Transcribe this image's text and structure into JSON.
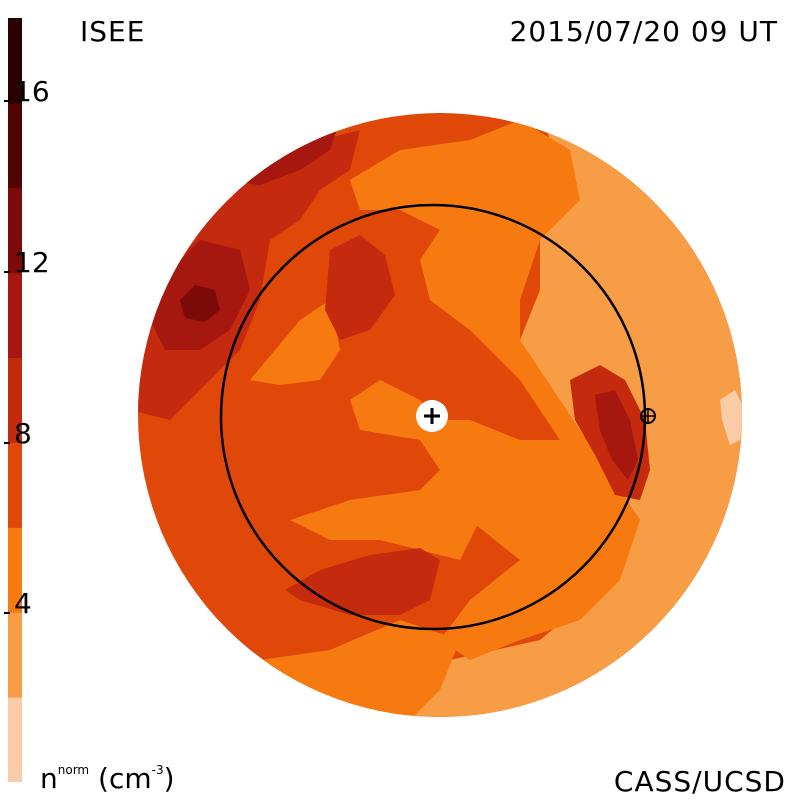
{
  "header": {
    "title_left": "ISEE",
    "title_right": "2015/07/20 09 UT"
  },
  "footer": {
    "right_label": "CASS/UCSD"
  },
  "colorbar": {
    "unit_base": "n",
    "unit_super": "norm",
    "unit_paren": "(cm",
    "unit_exp": "-3",
    "unit_close": ")",
    "tick_labels": [
      "16",
      "12",
      "8",
      "4"
    ],
    "levels": [
      {
        "color": "#f9cba6"
      },
      {
        "color": "#f79d45"
      },
      {
        "color": "#f77a10"
      },
      {
        "color": "#e0480a"
      },
      {
        "color": "#c42a0e"
      },
      {
        "color": "#a5170f"
      },
      {
        "color": "#7c0a08"
      },
      {
        "color": "#4e0503"
      },
      {
        "color": "#2a0200"
      }
    ]
  },
  "map": {
    "background_color": "#f47c18",
    "center_symbol": "sun-icon",
    "planet_symbol": "earth-icon"
  }
}
